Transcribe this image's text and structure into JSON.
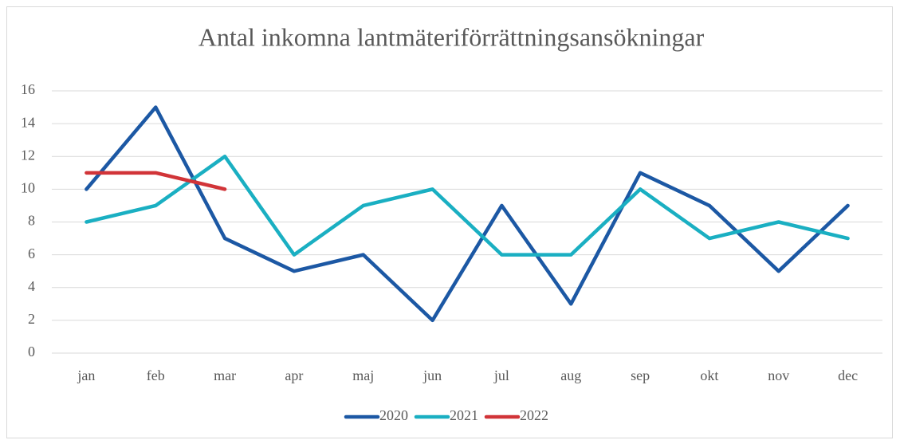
{
  "chart_data": {
    "type": "line",
    "title": "Antal inkomna lantmäteriförrättningsansökningar",
    "categories": [
      "jan",
      "feb",
      "mar",
      "apr",
      "maj",
      "jun",
      "jul",
      "aug",
      "sep",
      "okt",
      "nov",
      "dec"
    ],
    "series": [
      {
        "name": "2020",
        "color": "#1c58a4",
        "values": [
          10,
          15,
          7,
          5,
          6,
          2,
          9,
          3,
          11,
          9,
          5,
          9
        ]
      },
      {
        "name": "2021",
        "color": "#1aafc2",
        "values": [
          8,
          9,
          12,
          6,
          9,
          10,
          6,
          6,
          10,
          7,
          8,
          7
        ]
      },
      {
        "name": "2022",
        "color": "#d13438",
        "values": [
          11,
          11,
          10,
          null,
          null,
          null,
          null,
          null,
          null,
          null,
          null,
          null
        ]
      }
    ],
    "ylim": [
      0,
      16
    ],
    "yticks": [
      0,
      2,
      4,
      6,
      8,
      10,
      12,
      14,
      16
    ],
    "grid": true,
    "legend": "bottom"
  }
}
